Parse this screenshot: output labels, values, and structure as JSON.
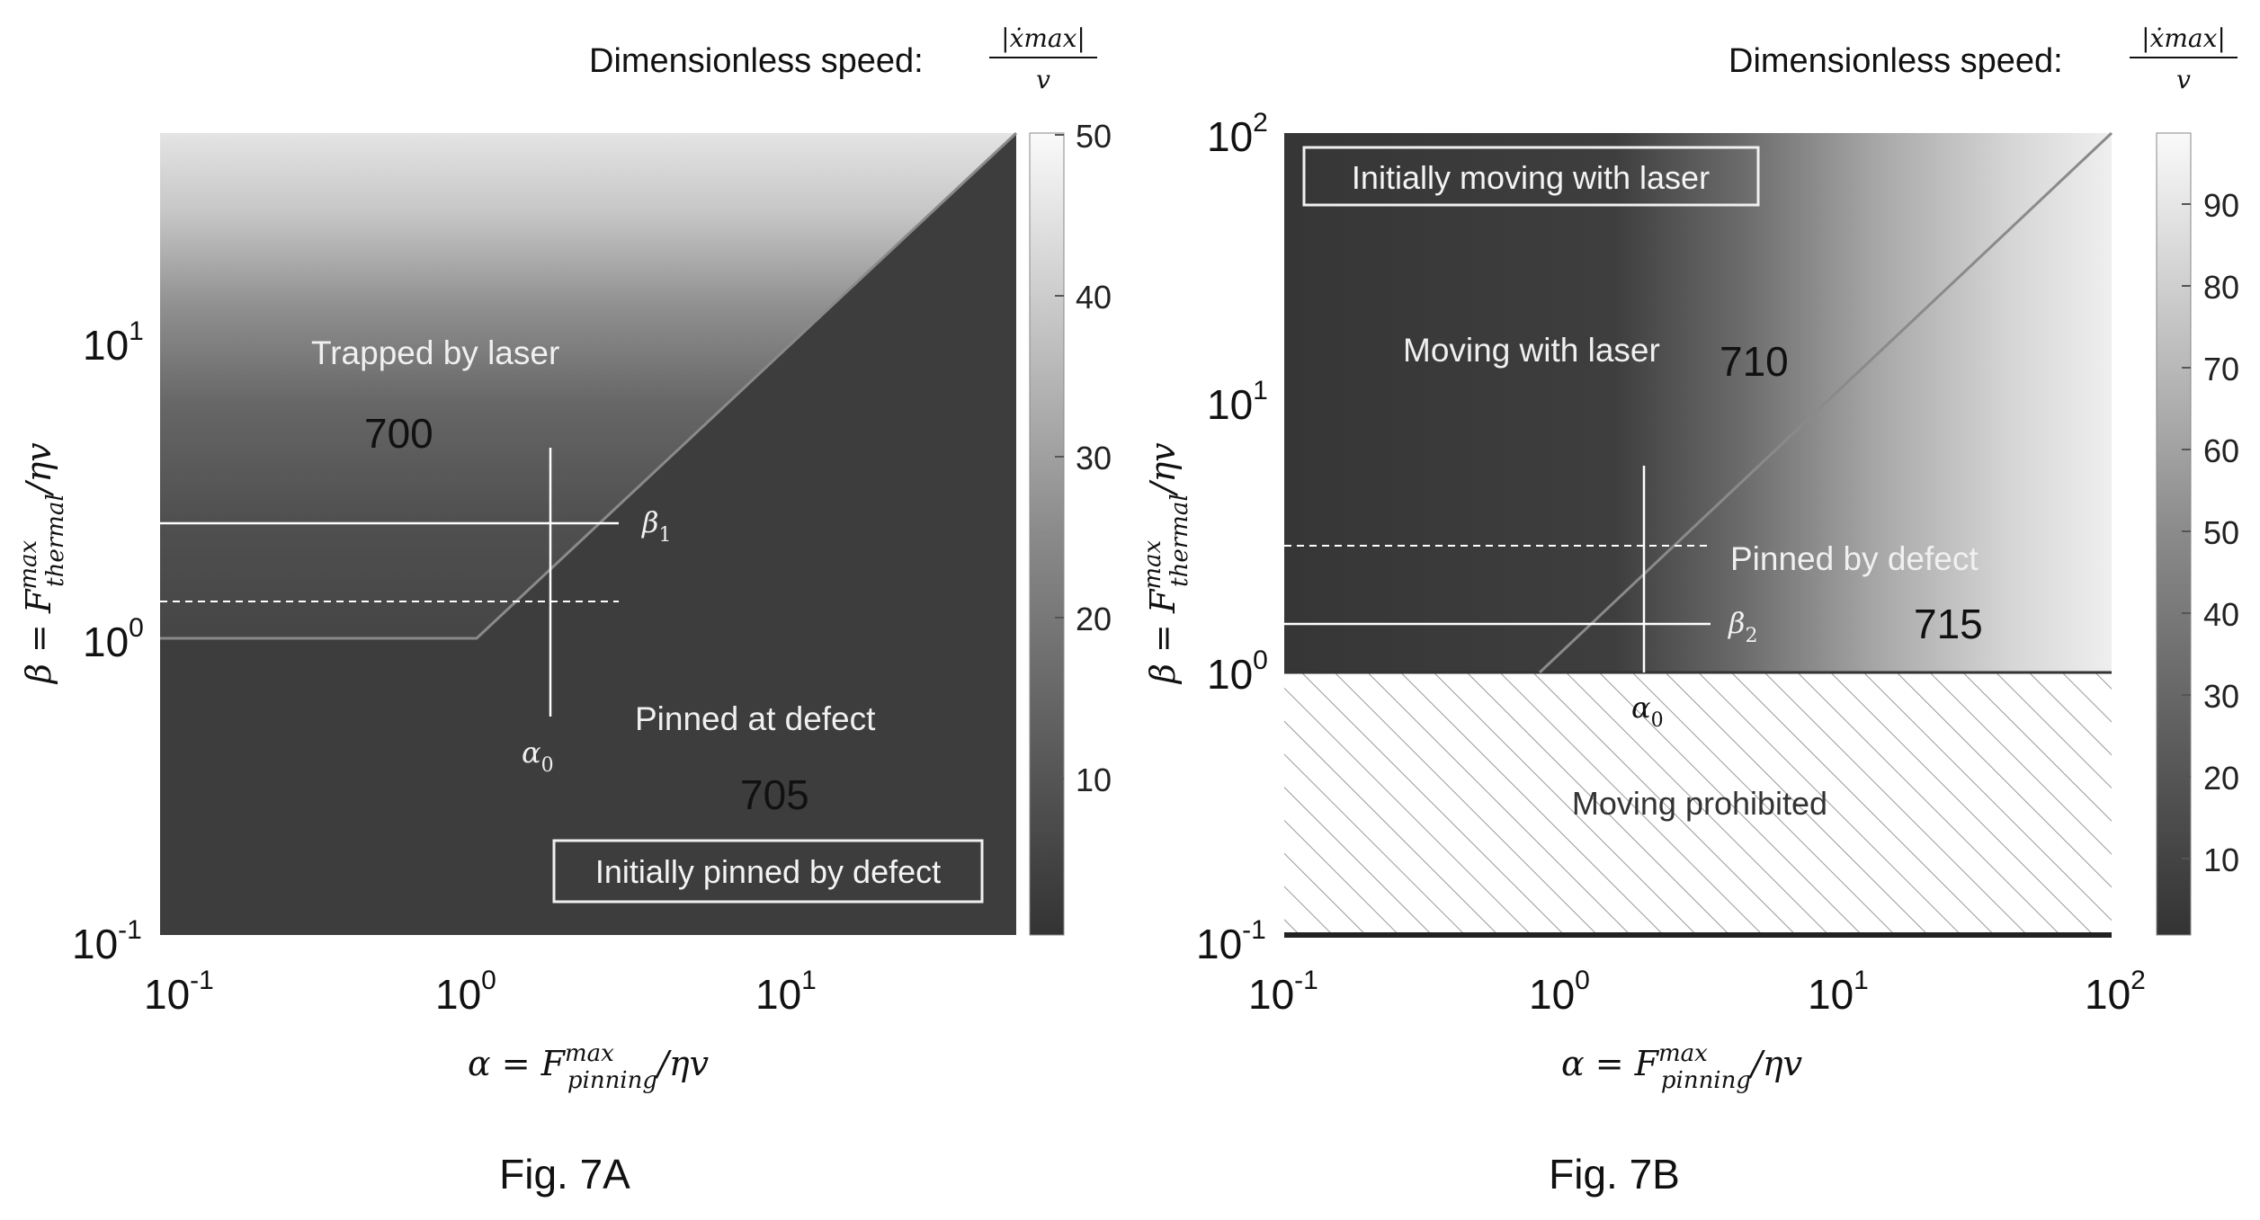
{
  "figures": [
    {
      "caption": "Fig. 7A",
      "colorbar_title": "Dimensionless speed:",
      "colorbar_formula_num": "|ẋmax|",
      "colorbar_formula_den": "v",
      "colorbar_ticks": [
        "10",
        "20",
        "30",
        "40",
        "50"
      ],
      "x_ticks": [
        {
          "base": "10",
          "exp": "-1"
        },
        {
          "base": "10",
          "exp": "0"
        },
        {
          "base": "10",
          "exp": "1"
        }
      ],
      "y_ticks": [
        {
          "base": "10",
          "exp": "-1"
        },
        {
          "base": "10",
          "exp": "0"
        },
        {
          "base": "10",
          "exp": "1"
        }
      ],
      "xlabel": "α = F",
      "xlabel_sup": "max",
      "xlabel_sub": "pinning",
      "xlabel_tail": "/ηv",
      "ylabel": "β = F",
      "ylabel_sup": "max",
      "ylabel_sub": "thermal",
      "ylabel_tail": "/ηv",
      "region_labels": {
        "trapped": "Trapped by laser",
        "pinned": "Pinned at defect"
      },
      "ref_numbers": {
        "a": "700",
        "b": "705"
      },
      "box_label": "Initially pinned by defect",
      "beta_label": "β",
      "beta_sub": "1",
      "alpha_label": "α",
      "alpha_sub": "0"
    },
    {
      "caption": "Fig. 7B",
      "colorbar_title": "Dimensionless speed:",
      "colorbar_formula_num": "|ẋmax|",
      "colorbar_formula_den": "v",
      "colorbar_ticks": [
        "10",
        "20",
        "30",
        "40",
        "50",
        "60",
        "70",
        "80",
        "90"
      ],
      "x_ticks": [
        {
          "base": "10",
          "exp": "-1"
        },
        {
          "base": "10",
          "exp": "0"
        },
        {
          "base": "10",
          "exp": "1"
        },
        {
          "base": "10",
          "exp": "2"
        }
      ],
      "y_ticks": [
        {
          "base": "10",
          "exp": "-1"
        },
        {
          "base": "10",
          "exp": "0"
        },
        {
          "base": "10",
          "exp": "1"
        },
        {
          "base": "10",
          "exp": "2"
        }
      ],
      "xlabel": "α = F",
      "xlabel_sup": "max",
      "xlabel_sub": "pinning",
      "xlabel_tail": "/ηv",
      "ylabel": "β = F",
      "ylabel_sup": "max",
      "ylabel_sub": "thermal",
      "ylabel_tail": "/ηv",
      "region_labels": {
        "moving": "Moving with laser",
        "pinned": "Pinned by defect",
        "prohibited": "Moving prohibited"
      },
      "ref_numbers": {
        "a": "710",
        "b": "715"
      },
      "box_label": "Initially moving with laser",
      "beta_label": "β",
      "beta_sub": "2",
      "alpha_label": "α",
      "alpha_sub": "0"
    }
  ],
  "chart_data": [
    {
      "type": "heatmap",
      "title": "Fig. 7A",
      "xlabel": "α = F_pinning^max/ηv",
      "ylabel": "β = F_thermal^max/ηv",
      "colorbar_label": "Dimensionless speed: |ẋmax|/v",
      "x_scale": "log",
      "y_scale": "log",
      "xlim": [
        0.1,
        60
      ],
      "ylim": [
        0.1,
        60
      ],
      "colorbar_range": [
        0,
        50
      ],
      "regions": [
        "Trapped by laser",
        "Pinned at defect"
      ],
      "lines": [
        {
          "kind": "boundary",
          "points": [
            [
              0.1,
              1.0
            ],
            [
              1.0,
              1.0
            ],
            [
              60,
              60
            ]
          ]
        },
        {
          "kind": "beta_1",
          "y": 2.3,
          "x_range": [
            0.1,
            2.8
          ]
        },
        {
          "kind": "dashed",
          "y": 1.35,
          "x_range": [
            0.1,
            2.8
          ]
        },
        {
          "kind": "alpha_0",
          "x": 1.8,
          "y_range": [
            0.5,
            4.5
          ]
        }
      ]
    },
    {
      "type": "heatmap",
      "title": "Fig. 7B",
      "xlabel": "α = F_pinning^max/ηv",
      "ylabel": "β = F_thermal^max/ηv",
      "colorbar_label": "Dimensionless speed: |ẋmax|/v",
      "x_scale": "log",
      "y_scale": "log",
      "xlim": [
        0.1,
        100
      ],
      "ylim": [
        0.1,
        100
      ],
      "colorbar_range": [
        0,
        98
      ],
      "regions": [
        "Moving with laser",
        "Pinned by defect",
        "Moving prohibited"
      ],
      "lines": [
        {
          "kind": "boundary",
          "points": [
            [
              1.0,
              1.0
            ],
            [
              100,
              100
            ]
          ]
        },
        {
          "kind": "beta_2",
          "y": 1.5,
          "x_range": [
            0.1,
            3.5
          ]
        },
        {
          "kind": "dashed",
          "y": 3.0,
          "x_range": [
            0.1,
            3.5
          ]
        },
        {
          "kind": "alpha_0",
          "x": 2.0,
          "y_range": [
            1.0,
            6.0
          ]
        }
      ]
    }
  ]
}
